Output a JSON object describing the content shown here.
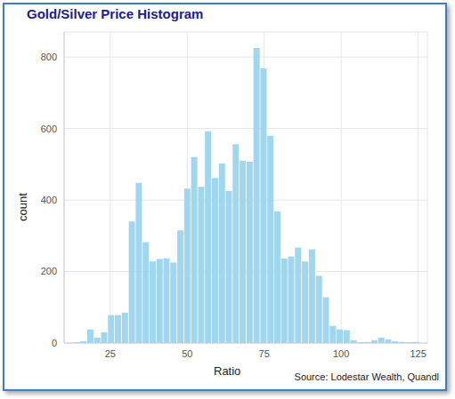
{
  "chart_data": {
    "type": "histogram",
    "title": "Gold/Silver Price Histogram",
    "x_label": "Ratio",
    "y_label": "count",
    "annotation": "Source: Lodestar Wealth, Quandl",
    "bins": [
      13,
      15.25,
      17.5,
      19.75,
      22,
      24.25,
      26.5,
      28.75,
      31,
      33.25,
      35.5,
      37.75,
      40,
      42.25,
      44.5,
      46.75,
      49,
      51.25,
      53.5,
      55.75,
      58,
      60.25,
      62.5,
      64.75,
      67,
      69.25,
      71.5,
      73.75,
      76,
      78.25,
      80.5,
      82.75,
      85,
      87.25,
      89.5,
      91.75,
      94,
      96.25,
      98.5,
      100.75,
      103,
      105.25,
      107.5,
      109.75,
      112,
      114.25,
      116.5,
      118.75,
      121,
      123.25,
      125.5
    ],
    "values": [
      2,
      5,
      38,
      15,
      30,
      78,
      78,
      85,
      340,
      448,
      282,
      228,
      235,
      237,
      225,
      315,
      432,
      520,
      437,
      592,
      462,
      502,
      425,
      556,
      510,
      507,
      825,
      768,
      580,
      368,
      236,
      242,
      267,
      228,
      262,
      188,
      128,
      48,
      38,
      36,
      8,
      2,
      3,
      8,
      15,
      10,
      5,
      3,
      2,
      3
    ],
    "color": "#a0d6ee",
    "xlim": [
      10,
      128
    ],
    "xticks": [
      25,
      50,
      75,
      100,
      125
    ],
    "ylim": [
      0,
      870
    ],
    "yticks": [
      0,
      200,
      400,
      600,
      800
    ],
    "grid": true
  }
}
